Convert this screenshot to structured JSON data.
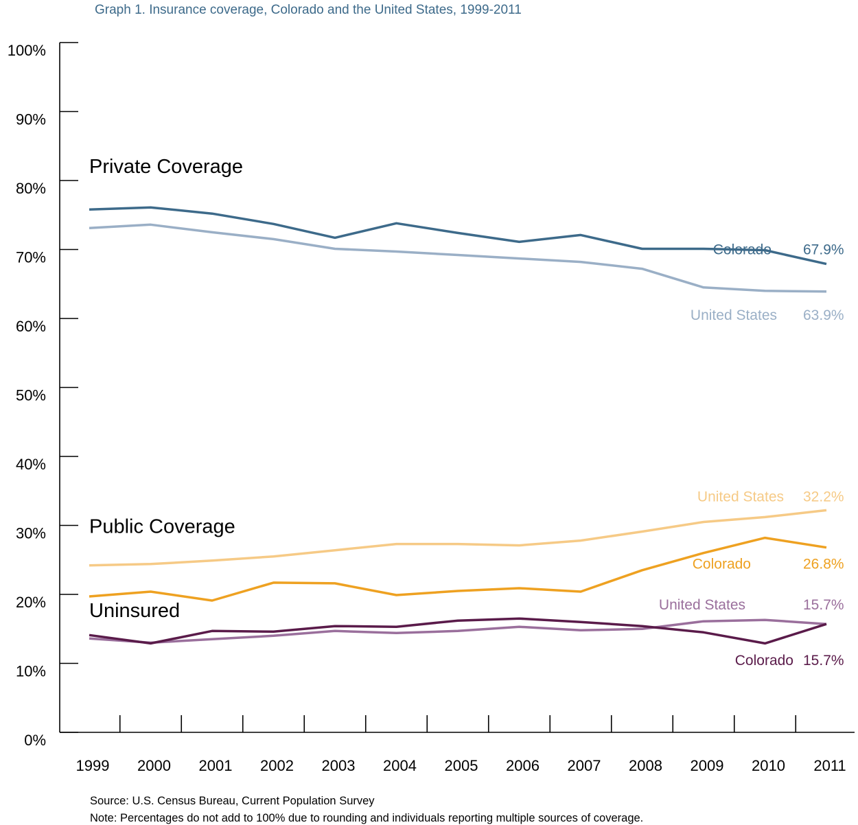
{
  "chart_data": {
    "type": "line",
    "title": "Graph 1. Insurance coverage, Colorado and the United States, 1999-2011",
    "xlabel": "",
    "ylabel": "",
    "ylim": [
      0,
      100
    ],
    "yticks": [
      "0%",
      "10%",
      "20%",
      "30%",
      "40%",
      "50%",
      "60%",
      "70%",
      "80%",
      "90%",
      "100%"
    ],
    "x": [
      "1999",
      "2000",
      "2001",
      "2002",
      "2003",
      "2004",
      "2005",
      "2006",
      "2007",
      "2008",
      "2009",
      "2010",
      "2011"
    ],
    "grid": false,
    "series": [
      {
        "name": "Colorado",
        "group": "Private Coverage",
        "color": "#3d6a8a",
        "values": [
          75.8,
          76.1,
          75.2,
          73.7,
          71.7,
          73.8,
          72.4,
          71.1,
          72.1,
          70.1,
          70.1,
          69.9,
          67.9
        ]
      },
      {
        "name": "United States",
        "group": "Private Coverage",
        "color": "#9aafc6",
        "values": [
          73.1,
          73.6,
          72.5,
          71.5,
          70.1,
          69.7,
          69.2,
          68.7,
          68.2,
          67.2,
          64.5,
          64.0,
          63.9
        ]
      },
      {
        "name": "United States",
        "group": "Public Coverage",
        "color": "#f6ca86",
        "values": [
          24.2,
          24.4,
          24.9,
          25.5,
          26.4,
          27.3,
          27.3,
          27.1,
          27.8,
          29.1,
          30.5,
          31.2,
          32.2
        ]
      },
      {
        "name": "Colorado",
        "group": "Public Coverage",
        "color": "#eea121",
        "values": [
          19.7,
          20.4,
          19.1,
          21.7,
          21.6,
          19.9,
          20.5,
          20.9,
          20.4,
          23.5,
          26.0,
          28.2,
          26.8
        ]
      },
      {
        "name": "United States",
        "group": "Uninsured",
        "color": "#9a6f9c",
        "values": [
          13.6,
          13.0,
          13.5,
          14.0,
          14.7,
          14.4,
          14.7,
          15.3,
          14.8,
          15.0,
          16.1,
          16.3,
          15.7
        ]
      },
      {
        "name": "Colorado",
        "group": "Uninsured",
        "color": "#5a1b4a",
        "values": [
          14.1,
          12.9,
          14.7,
          14.6,
          15.4,
          15.3,
          16.2,
          16.5,
          16.0,
          15.4,
          14.5,
          12.9,
          15.7
        ]
      }
    ],
    "group_labels": [
      {
        "text": "Private Coverage",
        "x": "1999",
        "y": 81.1
      },
      {
        "text": "Public Coverage",
        "x": "1999",
        "y": 28.9
      },
      {
        "text": "Uninsured",
        "x": "1999",
        "y": 16.7
      }
    ],
    "series_labels": [
      {
        "series": 0,
        "text": "Colorado",
        "value_text": "67.9%"
      },
      {
        "series": 1,
        "text": "United States",
        "value_text": "63.9%"
      },
      {
        "series": 2,
        "text": "United States",
        "value_text": "32.2%"
      },
      {
        "series": 3,
        "text": "Colorado",
        "value_text": "26.8%"
      },
      {
        "series": 4,
        "text": "United States",
        "value_text": "15.7%"
      },
      {
        "series": 5,
        "text": "Colorado",
        "value_text": "15.7%"
      }
    ],
    "source_note": "Source: U.S. Census Bureau, Current Population Survey",
    "percent_note": "Note: Percentages do not add to 100% due to rounding and individuals reporting multiple sources of coverage."
  }
}
